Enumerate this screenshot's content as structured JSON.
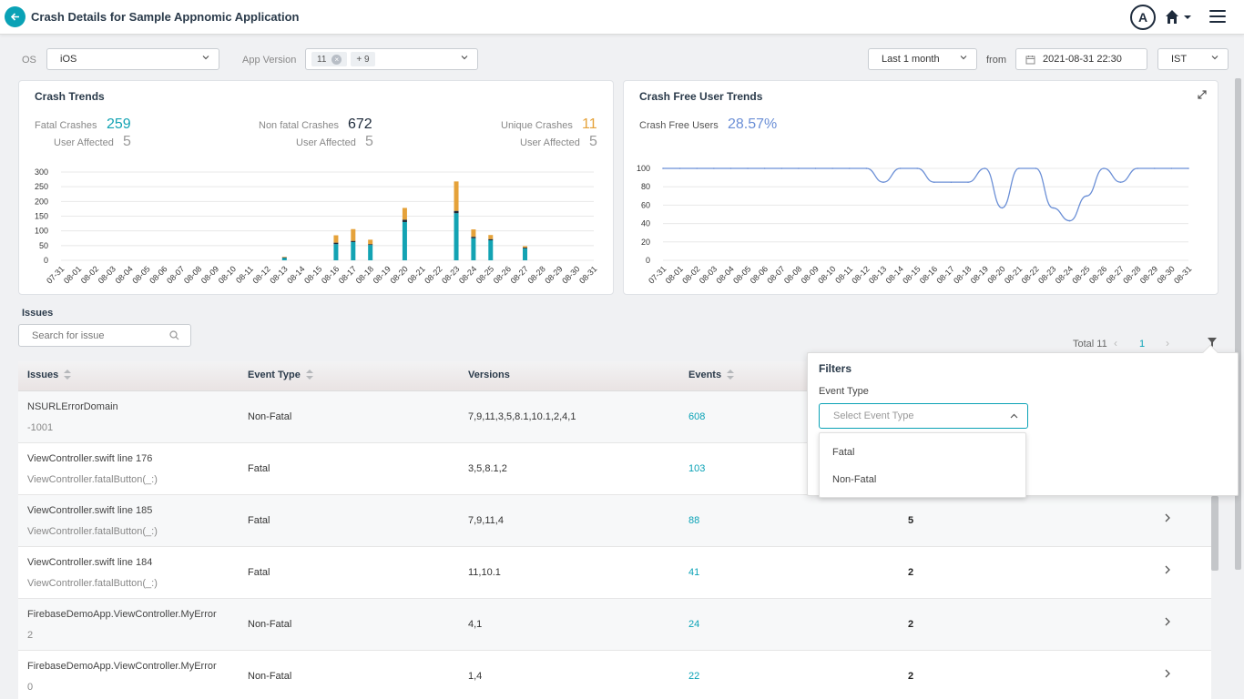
{
  "header": {
    "title": "Crash Details for Sample Appnomic Application",
    "avatar": "A"
  },
  "filters": {
    "os_label": "OS",
    "os_value": "iOS",
    "appver_label": "App Version",
    "appver_tag": "11",
    "appver_more": "+ 9",
    "range_value": "Last 1 month",
    "from_label": "from",
    "from_value": "2021-08-31 22:30",
    "tz_value": "IST"
  },
  "crash_trends": {
    "title": "Crash Trends",
    "fatal_label": "Fatal Crashes",
    "fatal_value": "259",
    "fatal_users_label": "User Affected",
    "fatal_users": "5",
    "nonfatal_label": "Non fatal Crashes",
    "nonfatal_value": "672",
    "nonfatal_users_label": "User Affected",
    "nonfatal_users": "5",
    "unique_label": "Unique Crashes",
    "unique_value": "11",
    "unique_users_label": "User Affected",
    "unique_users": "5"
  },
  "crash_free": {
    "title": "Crash Free User Trends",
    "label": "Crash Free Users",
    "value": "28.57%"
  },
  "chart_data": [
    {
      "type": "bar",
      "stacked": true,
      "categories": [
        "07-31",
        "08-01",
        "08-02",
        "08-03",
        "08-04",
        "08-05",
        "08-06",
        "08-07",
        "08-08",
        "08-09",
        "08-10",
        "08-11",
        "08-12",
        "08-13",
        "08-14",
        "08-15",
        "08-16",
        "08-17",
        "08-18",
        "08-19",
        "08-20",
        "08-21",
        "08-22",
        "08-23",
        "08-24",
        "08-25",
        "08-26",
        "08-27",
        "08-28",
        "08-29",
        "08-30",
        "08-31"
      ],
      "series": [
        {
          "color": "#13a3b3",
          "values": [
            0,
            0,
            0,
            0,
            0,
            0,
            0,
            0,
            0,
            0,
            0,
            0,
            0,
            8,
            0,
            0,
            55,
            62,
            52,
            0,
            130,
            0,
            0,
            160,
            75,
            68,
            0,
            40,
            0,
            0,
            0,
            0
          ]
        },
        {
          "color": "#1d2a3a",
          "values": [
            0,
            0,
            0,
            0,
            0,
            0,
            0,
            0,
            0,
            0,
            0,
            0,
            0,
            2,
            0,
            0,
            5,
            4,
            3,
            0,
            8,
            0,
            0,
            8,
            5,
            4,
            0,
            3,
            0,
            0,
            0,
            0
          ]
        },
        {
          "color": "#e5a23a",
          "values": [
            0,
            0,
            0,
            0,
            0,
            0,
            0,
            0,
            0,
            0,
            0,
            0,
            0,
            2,
            0,
            0,
            25,
            40,
            15,
            0,
            40,
            0,
            0,
            100,
            25,
            14,
            0,
            5,
            0,
            0,
            0,
            0
          ]
        }
      ],
      "ylim": [
        0,
        300
      ],
      "yticks": [
        0,
        50,
        100,
        150,
        200,
        250,
        300
      ],
      "grid": true
    },
    {
      "type": "line",
      "categories": [
        "07-31",
        "08-01",
        "08-02",
        "08-03",
        "08-04",
        "08-05",
        "08-06",
        "08-07",
        "08-08",
        "08-09",
        "08-10",
        "08-11",
        "08-12",
        "08-13",
        "08-14",
        "08-15",
        "08-16",
        "08-17",
        "08-18",
        "08-19",
        "08-20",
        "08-21",
        "08-22",
        "08-23",
        "08-24",
        "08-25",
        "08-26",
        "08-27",
        "08-28",
        "08-29",
        "08-30",
        "08-31"
      ],
      "series": [
        {
          "color": "#6b8fd6",
          "values": [
            100,
            100,
            100,
            100,
            100,
            100,
            100,
            100,
            100,
            100,
            100,
            100,
            100,
            85,
            100,
            100,
            85,
            85,
            85,
            100,
            57,
            100,
            100,
            57,
            43,
            70,
            100,
            85,
            100,
            100,
            100,
            100
          ]
        }
      ],
      "ylim": [
        0,
        100
      ],
      "yticks": [
        0,
        20,
        40,
        60,
        80,
        100
      ],
      "grid": true
    }
  ],
  "issues": {
    "label": "Issues",
    "search_placeholder": "Search for issue",
    "total": "Total 11",
    "page": "1",
    "columns": {
      "issues": "Issues",
      "event_type": "Event Type",
      "versions": "Versions",
      "events": "Events"
    },
    "rows": [
      {
        "name": "NSURLErrorDomain",
        "sub": "-1001",
        "type": "Non-Fatal",
        "versions": "7,9,11,3,5,8.1,10.1,2,4,1",
        "events": "608",
        "users": ""
      },
      {
        "name": "ViewController.swift line 176",
        "sub": "ViewController.fatalButton(_:)",
        "type": "Fatal",
        "versions": "3,5,8.1,2",
        "events": "103",
        "users": ""
      },
      {
        "name": "ViewController.swift line 185",
        "sub": "ViewController.fatalButton(_:)",
        "type": "Fatal",
        "versions": "7,9,11,4",
        "events": "88",
        "users": "5"
      },
      {
        "name": "ViewController.swift line 184",
        "sub": "ViewController.fatalButton(_:)",
        "type": "Fatal",
        "versions": "11,10.1",
        "events": "41",
        "users": "2"
      },
      {
        "name": "FirebaseDemoApp.ViewController.MyError",
        "sub": "2",
        "type": "Non-Fatal",
        "versions": "4,1",
        "events": "24",
        "users": "2"
      },
      {
        "name": "FirebaseDemoApp.ViewController.MyError",
        "sub": "0",
        "type": "Non-Fatal",
        "versions": "1,4",
        "events": "22",
        "users": "2"
      }
    ]
  },
  "filter_panel": {
    "title": "Filters",
    "event_type_label": "Event Type",
    "placeholder": "Select Event Type",
    "options": [
      "Fatal",
      "Non-Fatal"
    ]
  }
}
